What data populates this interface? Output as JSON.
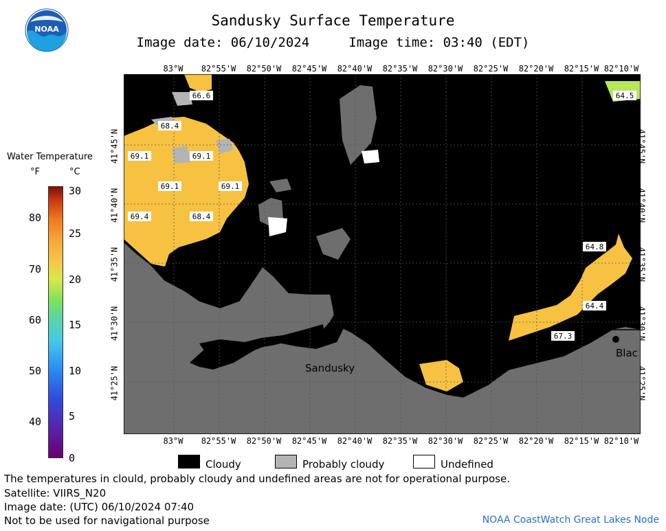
{
  "header": {
    "title": "Sandusky Surface Temperature",
    "subtitle": "Image date: 06/10/2024     Image time: 03:40 (EDT)",
    "logo_text": "NOAA"
  },
  "legend": {
    "title": "Water Temperature",
    "unit_f": "°F",
    "unit_c": "°C",
    "fahrenheit_ticks": [
      "80",
      "70",
      "60",
      "50",
      "40"
    ],
    "celsius_ticks": [
      "30",
      "25",
      "20",
      "15",
      "10",
      "5",
      "0"
    ]
  },
  "map": {
    "lon_ticks": [
      "83°W",
      "82°55'W",
      "82°50'W",
      "82°45'W",
      "82°40'W",
      "82°35'W",
      "82°30'W",
      "82°25'W",
      "82°20'W",
      "82°15'W",
      "82°10'W"
    ],
    "lat_ticks": [
      "41°45'N",
      "41°40'N",
      "41°35'N",
      "41°30'N",
      "41°25'N"
    ],
    "place_labels": {
      "sandusky": "Sandusky",
      "black": "Blac"
    },
    "temperature_labels": [
      "66.6",
      "68.4",
      "69.1",
      "69.1",
      "69.1",
      "69.1",
      "69.4",
      "68.4",
      "64.5",
      "64.8",
      "64.4",
      "67.3"
    ],
    "colors": {
      "cloudy": "#000000",
      "probably_cloudy": "#b4b4b4",
      "undefined": "#ffffff",
      "land": "#6e6e6e",
      "warm_water": "#f7c242"
    }
  },
  "key": {
    "cloudy": "Cloudy",
    "probably_cloudy": "Probably cloudy",
    "undefined": "Undefined"
  },
  "notes": {
    "line1": "The temperatures in clould, probably cloudy and undefined areas are not for operational purpose.",
    "line2": "Satellite: VIIRS_N20",
    "line3": "Image date: (UTC) 06/10/2024  07:40",
    "line4": "Not to be used for navigational purpose",
    "credit": "NOAA CoastWatch Great Lakes Node"
  }
}
